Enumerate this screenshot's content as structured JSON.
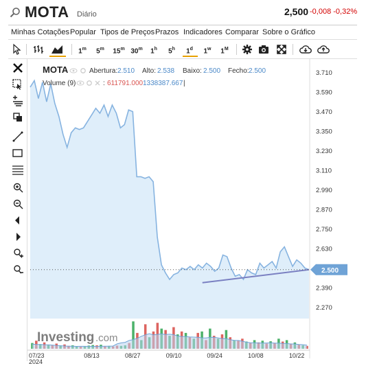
{
  "header": {
    "symbol": "MOTA",
    "timeframe_label": "Diário",
    "price": "2,500",
    "change": "-0,008 -0,32%"
  },
  "menu": [
    "Minhas Cotações",
    "Popular",
    "Tipos de Preços",
    "Prazos",
    "Indicadores",
    "Comparar",
    "Sobre o Gráfico"
  ],
  "toolbar": {
    "intervals": [
      "1m",
      "5m",
      "15m",
      "30m",
      "1h",
      "5h",
      "1d",
      "1w",
      "1M"
    ],
    "active_interval": "1d"
  },
  "legend": {
    "symbol": "MOTA",
    "open_label": "Abertura:",
    "open": "2.510",
    "high_label": "Alto:",
    "high": "2.538",
    "low_label": "Baixo:",
    "low": "2.500",
    "close_label": "Fecho:",
    "close": "2.500",
    "volume_label": "Volume (9)",
    "volume_sep": ":",
    "volume_val1": "611791.000",
    "volume_val2": "1338387.667",
    "volume_tail": "|"
  },
  "watermark": {
    "brand": "Investing",
    "suffix": ".com"
  },
  "colors": {
    "line": "#86b3e0",
    "area": "#dcecfa",
    "trendline": "#7a80c2",
    "up_volume": "#3aaa5b",
    "down_volume": "#d9534f",
    "price_tag": "#6fa3d6"
  },
  "chart_data": {
    "type": "area",
    "y_ticks": [
      "3.710",
      "3.590",
      "3.470",
      "3.350",
      "3.230",
      "3.110",
      "2.990",
      "2.870",
      "2.750",
      "2.630",
      "2.510",
      "2.390",
      "2.270"
    ],
    "ylim": [
      2.2,
      3.75
    ],
    "x_ticks": [
      {
        "label": "07/23",
        "sub": "2024",
        "x": 0
      },
      {
        "label": "08/13",
        "sub": "",
        "x": 15
      },
      {
        "label": "08/27",
        "sub": "",
        "x": 25
      },
      {
        "label": "09/10",
        "sub": "",
        "x": 35
      },
      {
        "label": "09/24",
        "sub": "",
        "x": 45
      },
      {
        "label": "10/08",
        "sub": "",
        "x": 55
      },
      {
        "label": "10/22",
        "sub": "",
        "x": 65
      }
    ],
    "x_range": [
      0,
      68
    ],
    "series": [
      {
        "values": [
          3.62,
          3.66,
          3.55,
          3.65,
          3.53,
          3.64,
          3.52,
          3.44,
          3.33,
          3.25,
          3.34,
          3.37,
          3.36,
          3.37,
          3.41,
          3.45,
          3.49,
          3.46,
          3.51,
          3.44,
          3.51,
          3.46,
          3.37,
          3.39,
          3.48,
          3.47,
          3.07,
          3.07,
          3.06,
          3.07,
          3.04,
          2.7,
          2.53,
          2.48,
          2.44,
          2.47,
          2.48,
          2.51,
          2.5,
          2.52,
          2.5,
          2.53,
          2.51,
          2.54,
          2.52,
          2.49,
          2.51,
          2.59,
          2.58,
          2.51,
          2.46,
          2.47,
          2.44,
          2.5,
          2.48,
          2.47,
          2.54,
          2.51,
          2.53,
          2.55,
          2.51,
          2.61,
          2.64,
          2.58,
          2.52,
          2.56,
          2.54,
          2.51,
          2.5
        ]
      }
    ],
    "current_value": "2.500",
    "current_numeric": 2.5,
    "trendline": {
      "x1": 42,
      "y1": 2.42,
      "x2": 68,
      "y2": 2.5
    },
    "volume": [
      {
        "v": 0.2,
        "up": true
      },
      {
        "v": 0.28,
        "up": false
      },
      {
        "v": 0.16,
        "up": true
      },
      {
        "v": 0.22,
        "up": false
      },
      {
        "v": 0.14,
        "up": true
      },
      {
        "v": 0.12,
        "up": false
      },
      {
        "v": 0.18,
        "up": false
      },
      {
        "v": 0.1,
        "up": true
      },
      {
        "v": 0.15,
        "up": false
      },
      {
        "v": 0.1,
        "up": false
      },
      {
        "v": 0.12,
        "up": true
      },
      {
        "v": 0.08,
        "up": true
      },
      {
        "v": 0.07,
        "up": false
      },
      {
        "v": 0.09,
        "up": true
      },
      {
        "v": 0.11,
        "up": true
      },
      {
        "v": 0.13,
        "up": true
      },
      {
        "v": 0.12,
        "up": false
      },
      {
        "v": 0.14,
        "up": true
      },
      {
        "v": 0.09,
        "up": false
      },
      {
        "v": 0.1,
        "up": true
      },
      {
        "v": 0.08,
        "up": false
      },
      {
        "v": 0.11,
        "up": false
      },
      {
        "v": 0.1,
        "up": true
      },
      {
        "v": 0.12,
        "up": true
      },
      {
        "v": 0.2,
        "up": false
      },
      {
        "v": 0.95,
        "up": true
      },
      {
        "v": 0.55,
        "up": false
      },
      {
        "v": 0.3,
        "up": true
      },
      {
        "v": 0.85,
        "up": false
      },
      {
        "v": 0.4,
        "up": true
      },
      {
        "v": 0.6,
        "up": false
      },
      {
        "v": 0.9,
        "up": false
      },
      {
        "v": 0.7,
        "up": true
      },
      {
        "v": 0.65,
        "up": false
      },
      {
        "v": 0.45,
        "up": true
      },
      {
        "v": 0.75,
        "up": false
      },
      {
        "v": 0.5,
        "up": true
      },
      {
        "v": 0.6,
        "up": false
      },
      {
        "v": 0.55,
        "up": true
      },
      {
        "v": 0.4,
        "up": false
      },
      {
        "v": 0.35,
        "up": true
      },
      {
        "v": 0.55,
        "up": false
      },
      {
        "v": 0.6,
        "up": true
      },
      {
        "v": 0.3,
        "up": false
      },
      {
        "v": 0.7,
        "up": true
      },
      {
        "v": 0.45,
        "up": false
      },
      {
        "v": 0.35,
        "up": true
      },
      {
        "v": 0.5,
        "up": false
      },
      {
        "v": 0.65,
        "up": true
      },
      {
        "v": 0.4,
        "up": false
      },
      {
        "v": 0.3,
        "up": true
      },
      {
        "v": 0.28,
        "up": false
      },
      {
        "v": 0.35,
        "up": false
      },
      {
        "v": 0.25,
        "up": true
      },
      {
        "v": 0.2,
        "up": false
      },
      {
        "v": 0.3,
        "up": true
      },
      {
        "v": 0.22,
        "up": false
      },
      {
        "v": 0.28,
        "up": true
      },
      {
        "v": 0.18,
        "up": false
      },
      {
        "v": 0.26,
        "up": true
      },
      {
        "v": 0.2,
        "up": false
      },
      {
        "v": 0.35,
        "up": true
      },
      {
        "v": 0.25,
        "up": false
      },
      {
        "v": 0.3,
        "up": true
      },
      {
        "v": 0.18,
        "up": false
      },
      {
        "v": 0.22,
        "up": true
      },
      {
        "v": 0.15,
        "up": false
      },
      {
        "v": 0.12,
        "up": true
      },
      {
        "v": 0.1,
        "up": false
      }
    ]
  }
}
